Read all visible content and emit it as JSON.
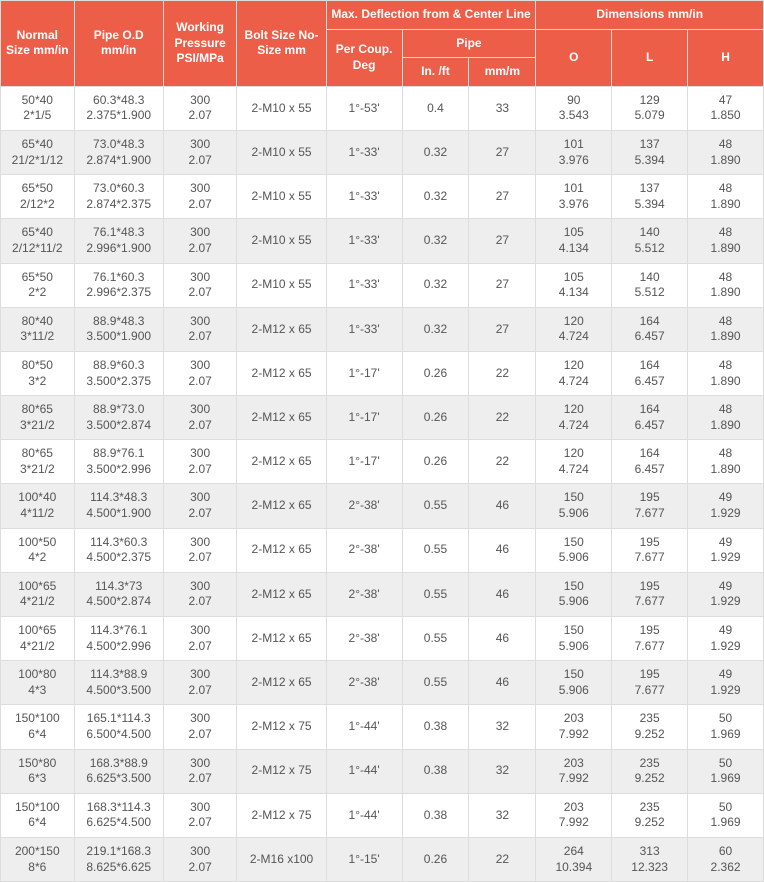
{
  "headers": {
    "normalSize": "Normal Size mm/in",
    "pipeOD": "Pipe O.D mm/in",
    "workingPressure": "Working Pressure PSI/MPa",
    "boltSize": "Bolt Size No-Size mm",
    "maxDefl": "Max. Deflection from & Center Line",
    "perCoupDeg": "Per Coup. Deg",
    "pipe": "Pipe",
    "inFt": "In. /ft",
    "mmM": "mm/m",
    "dims": "Dimensions mm/in",
    "O": "O",
    "L": "L",
    "H": "H"
  },
  "colors": {
    "header_bg": "#ec5e48",
    "header_text": "#ffffff",
    "row_odd": "#ffffff",
    "row_even": "#eeeeee",
    "border": "#dddddd",
    "text": "#555555"
  },
  "rows": [
    {
      "ns1": "50*40",
      "ns2": "2*1/5",
      "od1": "60.3*48.3",
      "od2": "2.375*1.900",
      "wp1": "300",
      "wp2": "2.07",
      "bolt": "2-M10 x 55",
      "deg": "1°-53'",
      "inft": "0.4",
      "mmm": "33",
      "o1": "90",
      "o2": "3.543",
      "l1": "129",
      "l2": "5.079",
      "h1": "47",
      "h2": "1.850"
    },
    {
      "ns1": "65*40",
      "ns2": "21/2*1/12",
      "od1": "73.0*48.3",
      "od2": "2.874*1.900",
      "wp1": "300",
      "wp2": "2.07",
      "bolt": "2-M10 x 55",
      "deg": "1°-33'",
      "inft": "0.32",
      "mmm": "27",
      "o1": "101",
      "o2": "3.976",
      "l1": "137",
      "l2": "5.394",
      "h1": "48",
      "h2": "1.890"
    },
    {
      "ns1": "65*50",
      "ns2": "2/12*2",
      "od1": "73.0*60.3",
      "od2": "2.874*2.375",
      "wp1": "300",
      "wp2": "2.07",
      "bolt": "2-M10 x 55",
      "deg": "1°-33'",
      "inft": "0.32",
      "mmm": "27",
      "o1": "101",
      "o2": "3.976",
      "l1": "137",
      "l2": "5.394",
      "h1": "48",
      "h2": "1.890"
    },
    {
      "ns1": "65*40",
      "ns2": "2/12*11/2",
      "od1": "76.1*48.3",
      "od2": "2.996*1.900",
      "wp1": "300",
      "wp2": "2.07",
      "bolt": "2-M10 x 55",
      "deg": "1°-33'",
      "inft": "0.32",
      "mmm": "27",
      "o1": "105",
      "o2": "4.134",
      "l1": "140",
      "l2": "5.512",
      "h1": "48",
      "h2": "1.890"
    },
    {
      "ns1": "65*50",
      "ns2": "2*2",
      "od1": "76.1*60.3",
      "od2": "2.996*2.375",
      "wp1": "300",
      "wp2": "2.07",
      "bolt": "2-M10 x 55",
      "deg": "1°-33'",
      "inft": "0.32",
      "mmm": "27",
      "o1": "105",
      "o2": "4.134",
      "l1": "140",
      "l2": "5.512",
      "h1": "48",
      "h2": "1.890"
    },
    {
      "ns1": "80*40",
      "ns2": "3*11/2",
      "od1": "88.9*48.3",
      "od2": "3.500*1.900",
      "wp1": "300",
      "wp2": "2.07",
      "bolt": "2-M12 x 65",
      "deg": "1°-33'",
      "inft": "0.32",
      "mmm": "27",
      "o1": "120",
      "o2": "4.724",
      "l1": "164",
      "l2": "6.457",
      "h1": "48",
      "h2": "1.890"
    },
    {
      "ns1": "80*50",
      "ns2": "3*2",
      "od1": "88.9*60.3",
      "od2": "3.500*2.375",
      "wp1": "300",
      "wp2": "2.07",
      "bolt": "2-M12 x 65",
      "deg": "1°-17'",
      "inft": "0.26",
      "mmm": "22",
      "o1": "120",
      "o2": "4.724",
      "l1": "164",
      "l2": "6.457",
      "h1": "48",
      "h2": "1.890"
    },
    {
      "ns1": "80*65",
      "ns2": "3*21/2",
      "od1": "88.9*73.0",
      "od2": "3.500*2.874",
      "wp1": "300",
      "wp2": "2.07",
      "bolt": "2-M12 x 65",
      "deg": "1°-17'",
      "inft": "0.26",
      "mmm": "22",
      "o1": "120",
      "o2": "4.724",
      "l1": "164",
      "l2": "6.457",
      "h1": "48",
      "h2": "1.890"
    },
    {
      "ns1": "80*65",
      "ns2": "3*21/2",
      "od1": "88.9*76.1",
      "od2": "3.500*2.996",
      "wp1": "300",
      "wp2": "2.07",
      "bolt": "2-M12 x 65",
      "deg": "1°-17'",
      "inft": "0.26",
      "mmm": "22",
      "o1": "120",
      "o2": "4.724",
      "l1": "164",
      "l2": "6.457",
      "h1": "48",
      "h2": "1.890"
    },
    {
      "ns1": "100*40",
      "ns2": "4*11/2",
      "od1": "114.3*48.3",
      "od2": "4.500*1.900",
      "wp1": "300",
      "wp2": "2.07",
      "bolt": "2-M12 x 65",
      "deg": "2°-38'",
      "inft": "0.55",
      "mmm": "46",
      "o1": "150",
      "o2": "5.906",
      "l1": "195",
      "l2": "7.677",
      "h1": "49",
      "h2": "1.929"
    },
    {
      "ns1": "100*50",
      "ns2": "4*2",
      "od1": "114.3*60.3",
      "od2": "4.500*2.375",
      "wp1": "300",
      "wp2": "2.07",
      "bolt": "2-M12 x 65",
      "deg": "2°-38'",
      "inft": "0.55",
      "mmm": "46",
      "o1": "150",
      "o2": "5.906",
      "l1": "195",
      "l2": "7.677",
      "h1": "49",
      "h2": "1.929"
    },
    {
      "ns1": "100*65",
      "ns2": "4*21/2",
      "od1": "114.3*73",
      "od2": "4.500*2.874",
      "wp1": "300",
      "wp2": "2.07",
      "bolt": "2-M12 x 65",
      "deg": "2°-38'",
      "inft": "0.55",
      "mmm": "46",
      "o1": "150",
      "o2": "5.906",
      "l1": "195",
      "l2": "7.677",
      "h1": "49",
      "h2": "1.929"
    },
    {
      "ns1": "100*65",
      "ns2": "4*21/2",
      "od1": "114.3*76.1",
      "od2": "4.500*2.996",
      "wp1": "300",
      "wp2": "2.07",
      "bolt": "2-M12 x 65",
      "deg": "2°-38'",
      "inft": "0.55",
      "mmm": "46",
      "o1": "150",
      "o2": "5.906",
      "l1": "195",
      "l2": "7.677",
      "h1": "49",
      "h2": "1.929"
    },
    {
      "ns1": "100*80",
      "ns2": "4*3",
      "od1": "114.3*88.9",
      "od2": "4.500*3.500",
      "wp1": "300",
      "wp2": "2.07",
      "bolt": "2-M12 x 65",
      "deg": "2°-38'",
      "inft": "0.55",
      "mmm": "46",
      "o1": "150",
      "o2": "5.906",
      "l1": "195",
      "l2": "7.677",
      "h1": "49",
      "h2": "1.929"
    },
    {
      "ns1": "150*100",
      "ns2": "6*4",
      "od1": "165.1*114.3",
      "od2": "6.500*4.500",
      "wp1": "300",
      "wp2": "2.07",
      "bolt": "2-M12 x 75",
      "deg": "1°-44'",
      "inft": "0.38",
      "mmm": "32",
      "o1": "203",
      "o2": "7.992",
      "l1": "235",
      "l2": "9.252",
      "h1": "50",
      "h2": "1.969"
    },
    {
      "ns1": "150*80",
      "ns2": "6*3",
      "od1": "168.3*88.9",
      "od2": "6.625*3.500",
      "wp1": "300",
      "wp2": "2.07",
      "bolt": "2-M12 x 75",
      "deg": "1°-44'",
      "inft": "0.38",
      "mmm": "32",
      "o1": "203",
      "o2": "7.992",
      "l1": "235",
      "l2": "9.252",
      "h1": "50",
      "h2": "1.969"
    },
    {
      "ns1": "150*100",
      "ns2": "6*4",
      "od1": "168.3*114.3",
      "od2": "6.625*4.500",
      "wp1": "300",
      "wp2": "2.07",
      "bolt": "2-M12 x 75",
      "deg": "1°-44'",
      "inft": "0.38",
      "mmm": "32",
      "o1": "203",
      "o2": "7.992",
      "l1": "235",
      "l2": "9.252",
      "h1": "50",
      "h2": "1.969"
    },
    {
      "ns1": "200*150",
      "ns2": "8*6",
      "od1": "219.1*168.3",
      "od2": "8.625*6.625",
      "wp1": "300",
      "wp2": "2.07",
      "bolt": "2-M16 x100",
      "deg": "1°-15'",
      "inft": "0.26",
      "mmm": "22",
      "o1": "264",
      "o2": "10.394",
      "l1": "313",
      "l2": "12.323",
      "h1": "60",
      "h2": "2.362"
    }
  ]
}
